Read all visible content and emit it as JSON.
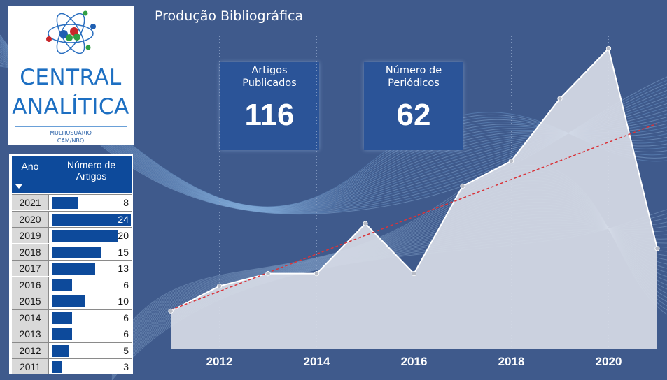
{
  "header": {
    "title": "Produção Bibliográfica"
  },
  "logo": {
    "line1": "CENTRAL",
    "line2": "ANALÍTICA",
    "sub1": "MULTIUSUÁRIO",
    "sub2": "CAM/NBQ"
  },
  "kpis": [
    {
      "label_line1": "Artigos",
      "label_line2": "Publicados",
      "value": "116"
    },
    {
      "label_line1": "Número de",
      "label_line2": "Periódicos",
      "value": "62"
    }
  ],
  "table": {
    "col_year": "Ano",
    "col_count_line1": "Número de",
    "col_count_line2": "Artigos",
    "rows": [
      {
        "year": "2021",
        "count": "8"
      },
      {
        "year": "2020",
        "count": "24"
      },
      {
        "year": "2019",
        "count": "20"
      },
      {
        "year": "2018",
        "count": "15"
      },
      {
        "year": "2017",
        "count": "13"
      },
      {
        "year": "2016",
        "count": "6"
      },
      {
        "year": "2015",
        "count": "10"
      },
      {
        "year": "2014",
        "count": "6"
      },
      {
        "year": "2013",
        "count": "6"
      },
      {
        "year": "2012",
        "count": "5"
      },
      {
        "year": "2011",
        "count": "3"
      }
    ]
  },
  "colors": {
    "background": "#3f5a8c",
    "area_fill": "#d7dbe6",
    "trend": "#d9343a",
    "table_bar": "#0d4a9b",
    "kpi_bg": "#2b5498"
  },
  "chart_data": {
    "type": "area",
    "x": [
      2011,
      2012,
      2013,
      2014,
      2015,
      2016,
      2017,
      2018,
      2019,
      2020,
      2021
    ],
    "series": [
      {
        "values": [
          3,
          5,
          6,
          6,
          10,
          6,
          13,
          15,
          20,
          24,
          8
        ]
      }
    ],
    "trendline": {
      "style": "dashed",
      "color": "#d9343a"
    },
    "xticks": [
      "2012",
      "2014",
      "2016",
      "2018",
      "2020"
    ],
    "xlim": [
      2011,
      2021
    ],
    "ylim": [
      0,
      25.2
    ],
    "grid": "vertical dotted",
    "legend": "none"
  }
}
